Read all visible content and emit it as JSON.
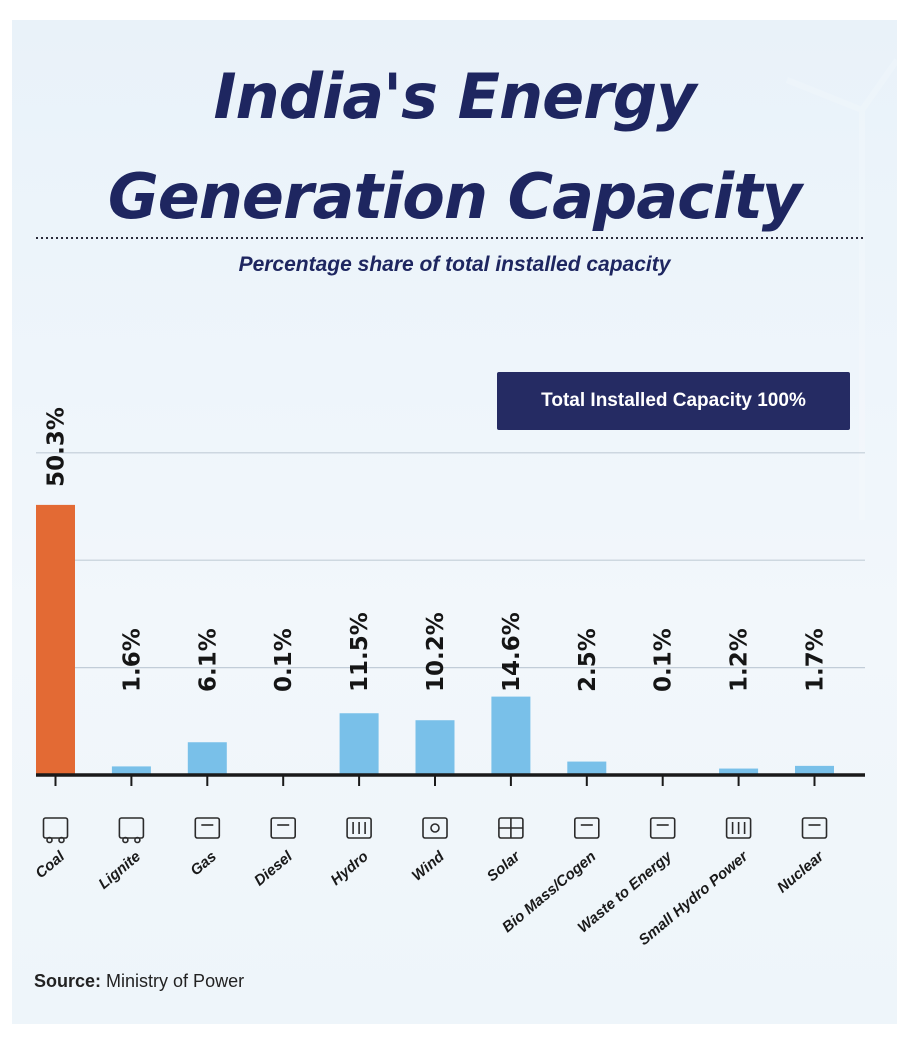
{
  "header": {
    "title_line1": "India's Energy",
    "title_line2": "Generation Capacity",
    "subtitle": "Percentage share of total installed capacity"
  },
  "reference": {
    "label": "Total Installed Capacity 100%",
    "value": 100
  },
  "source": {
    "label": "Source:",
    "text": "Ministry of Power"
  },
  "colors": {
    "highlight": "#e36a34",
    "bar": "#79c0e9",
    "dark": "#252b63"
  },
  "chart_data": {
    "type": "bar",
    "title": "India's Energy Generation Capacity",
    "subtitle": "Percentage share of total installed capacity",
    "categories": [
      "Coal",
      "Lignite",
      "Gas",
      "Diesel",
      "Hydro",
      "Wind",
      "Solar",
      "Bio Mass/Cogen",
      "Waste to Energy",
      "Small Hydro Power",
      "Nuclear"
    ],
    "values": [
      50.3,
      1.6,
      6.1,
      0.1,
      11.5,
      10.2,
      14.6,
      2.5,
      0.1,
      1.2,
      1.7
    ],
    "labels": [
      "50.3%",
      "1.6%",
      "6.1%",
      "0.1%",
      "11.5%",
      "10.2%",
      "14.6%",
      "2.5%",
      "0.1%",
      "1.2%",
      "1.7%"
    ],
    "icons": [
      "coal-cart-icon",
      "lignite-cart-icon",
      "gas-pump-icon",
      "diesel-can-icon",
      "hydro-dam-icon",
      "wind-turbine-icon",
      "solar-panel-icon",
      "biomass-plug-icon",
      "waste-to-energy-bulb-icon",
      "small-hydro-power-icon",
      "nuclear-plant-icon"
    ],
    "highlight_index": 0,
    "reference_line": 100,
    "ylim": [
      0,
      100
    ],
    "grid": true,
    "unit": "%"
  }
}
